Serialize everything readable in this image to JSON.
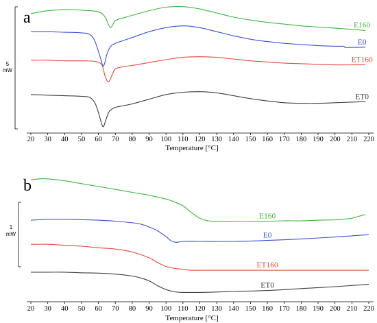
{
  "chart_data": [
    {
      "type": "line",
      "panel_label": "a",
      "xlabel": "Temperature [°C]",
      "xlim": [
        20,
        220
      ],
      "x_ticks": [
        "20",
        "30",
        "40",
        "50",
        "60",
        "70",
        "80",
        "90",
        "100",
        "110",
        "120",
        "130",
        "140",
        "150",
        "160",
        "170",
        "180",
        "190",
        "200",
        "210",
        "220"
      ],
      "scale_bar": {
        "value": "5",
        "unit": "mW"
      },
      "series": [
        {
          "name": "E160",
          "color": "#3cb43c",
          "label_x": 216,
          "label_offset": 14,
          "x": [
            20,
            30,
            40,
            50,
            60,
            64,
            67,
            70,
            75,
            80,
            90,
            100,
            110,
            120,
            130,
            140,
            150,
            160,
            170,
            180,
            190,
            200,
            210,
            218
          ],
          "y": [
            4.5,
            4.75,
            4.85,
            4.8,
            4.65,
            4.2,
            3.3,
            3.9,
            4.15,
            4.35,
            4.75,
            5.05,
            5.1,
            4.9,
            4.55,
            4.2,
            3.95,
            3.75,
            3.6,
            3.45,
            3.35,
            3.25,
            3.15,
            3.05
          ]
        },
        {
          "name": "E0",
          "color": "#3a4fd6",
          "label_x": 216,
          "label_offset": 13,
          "x": [
            20,
            30,
            40,
            50,
            55,
            58,
            61,
            63,
            65,
            67,
            70,
            75,
            80,
            90,
            100,
            110,
            120,
            130,
            140,
            150,
            160,
            170,
            180,
            190,
            200,
            205,
            206,
            210,
            218
          ],
          "y": [
            2.95,
            2.95,
            2.9,
            2.85,
            2.7,
            2.1,
            0.8,
            0.0,
            1.0,
            1.65,
            1.95,
            2.2,
            2.45,
            2.95,
            3.3,
            3.45,
            3.3,
            2.95,
            2.6,
            2.3,
            2.1,
            1.95,
            1.85,
            1.75,
            1.7,
            1.7,
            1.6,
            1.6,
            1.62
          ]
        },
        {
          "name": "ET160",
          "color": "#e8463c",
          "label_x": 216,
          "label_offset": 10,
          "x": [
            20,
            30,
            40,
            50,
            58,
            62,
            64,
            66,
            68,
            70,
            75,
            80,
            90,
            100,
            110,
            120,
            130,
            140,
            150,
            160,
            170,
            180,
            190,
            200,
            210,
            218
          ],
          "y": [
            0.5,
            0.5,
            0.45,
            0.45,
            0.4,
            0.1,
            -0.9,
            -1.35,
            -0.8,
            -0.25,
            -0.05,
            0.05,
            0.3,
            0.55,
            0.75,
            0.8,
            0.75,
            0.6,
            0.45,
            0.35,
            0.25,
            0.2,
            0.15,
            0.1,
            0.1,
            0.1
          ]
        },
        {
          "name": "ET0",
          "color": "#3c3c3c",
          "label_x": 216,
          "label_offset": 12,
          "x": [
            20,
            30,
            40,
            50,
            55,
            58,
            60,
            62,
            63,
            64,
            66,
            68,
            70,
            75,
            80,
            90,
            100,
            110,
            120,
            130,
            140,
            150,
            160,
            170,
            180,
            190,
            200,
            210,
            218
          ],
          "y": [
            -2.45,
            -2.5,
            -2.55,
            -2.6,
            -2.7,
            -3.2,
            -4.0,
            -5.0,
            -5.2,
            -4.8,
            -4.0,
            -3.7,
            -3.55,
            -3.4,
            -3.25,
            -2.85,
            -2.45,
            -2.25,
            -2.2,
            -2.3,
            -2.55,
            -2.8,
            -3.0,
            -3.15,
            -3.2,
            -3.2,
            -3.15,
            -3.1,
            -3.05
          ]
        }
      ]
    },
    {
      "type": "line",
      "panel_label": "b",
      "xlabel": "Temperature [°C]",
      "xlim": [
        20,
        220
      ],
      "x_ticks": [
        "20",
        "30",
        "40",
        "50",
        "60",
        "70",
        "80",
        "90",
        "100",
        "110",
        "120",
        "130",
        "140",
        "150",
        "160",
        "170",
        "180",
        "190",
        "200",
        "210",
        "220"
      ],
      "scale_bar": {
        "value": "1",
        "unit": "mW"
      },
      "series": [
        {
          "name": "E160",
          "color": "#3cb43c",
          "label_x": 160,
          "label_offset": 12,
          "x": [
            20,
            25,
            30,
            40,
            50,
            60,
            70,
            80,
            90,
            100,
            105,
            110,
            115,
            120,
            125,
            130,
            140,
            150,
            160,
            170,
            180,
            190,
            200,
            205,
            210,
            214,
            218
          ],
          "y": [
            5.85,
            5.9,
            5.9,
            5.8,
            5.65,
            5.5,
            5.35,
            5.2,
            5.05,
            4.85,
            4.7,
            4.5,
            4.15,
            3.85,
            3.72,
            3.7,
            3.7,
            3.7,
            3.7,
            3.72,
            3.72,
            3.75,
            3.77,
            3.8,
            3.85,
            3.95,
            4.05
          ]
        },
        {
          "name": "E0",
          "color": "#3a4fd6",
          "label_x": 160,
          "label_offset": 13,
          "x": [
            20,
            30,
            40,
            50,
            60,
            70,
            80,
            85,
            90,
            95,
            100,
            103,
            106,
            110,
            120,
            140,
            160,
            180,
            200,
            220
          ],
          "y": [
            3.75,
            3.8,
            3.8,
            3.78,
            3.75,
            3.7,
            3.62,
            3.55,
            3.4,
            3.2,
            2.9,
            2.68,
            2.6,
            2.65,
            2.65,
            2.65,
            2.7,
            2.78,
            2.88,
            3.0
          ]
        },
        {
          "name": "ET160",
          "color": "#e8463c",
          "label_x": 160,
          "label_offset": 11,
          "x": [
            20,
            30,
            40,
            50,
            60,
            70,
            80,
            90,
            95,
            100,
            105,
            110,
            115,
            120,
            140,
            160,
            180,
            200,
            220
          ],
          "y": [
            2.5,
            2.5,
            2.45,
            2.4,
            2.32,
            2.25,
            2.1,
            1.8,
            1.55,
            1.35,
            1.25,
            1.2,
            1.15,
            1.15,
            1.15,
            1.15,
            1.15,
            1.15,
            1.15
          ]
        },
        {
          "name": "ET0",
          "color": "#3c3c3c",
          "label_x": 160,
          "label_offset": 12,
          "x": [
            20,
            30,
            40,
            50,
            60,
            70,
            80,
            85,
            90,
            95,
            100,
            105,
            110,
            120,
            130,
            140,
            160,
            180,
            200,
            220
          ],
          "y": [
            1.05,
            1.05,
            1.05,
            1.02,
            1.0,
            0.95,
            0.85,
            0.75,
            0.6,
            0.35,
            0.15,
            0.03,
            0.0,
            0.0,
            0.02,
            0.05,
            0.1,
            0.2,
            0.3,
            0.42
          ]
        }
      ]
    }
  ]
}
